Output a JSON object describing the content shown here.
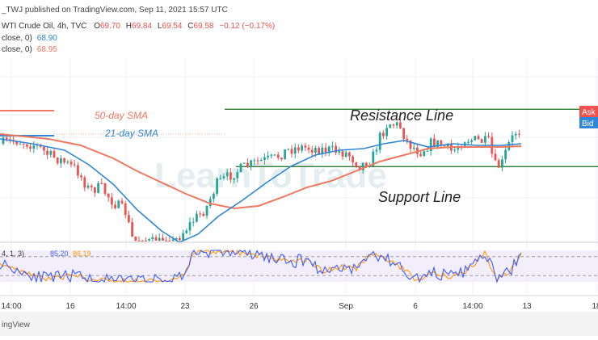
{
  "header": {
    "publisher": "_TWJ published on TradingView.com, Sep 11, 2021 15:57 UTC",
    "symbol": "WTI Crude Oil, 4h, TVC",
    "o_label": "O",
    "o_value": "69.70",
    "h_label": "H",
    "h_value": "69.84",
    "l_label": "L",
    "l_value": "69.54",
    "c_label": "C",
    "c_value": "69.58",
    "change": "−0.12 (−0.17%)",
    "sma1_label": "close, 0)",
    "sma1_value": "68.90",
    "sma2_label": "close, 0)",
    "sma2_value": "68.95"
  },
  "annotations": {
    "sma50_label": "50-day SMA",
    "sma21_label": "21-day SMA",
    "resistance_label": "Resistance Line",
    "support_label": "Support Line",
    "watermark": "LearnToTrade"
  },
  "price_tags": {
    "ask": "Ask",
    "bid": "Bid"
  },
  "oscillator": {
    "params": "4, 1, 3)",
    "k_value": "85.20",
    "d_value": "86.19"
  },
  "footer": {
    "brand": "ingView"
  },
  "colors": {
    "up": "#26a69a",
    "down": "#ef5350",
    "sma21": "#2f86d6",
    "sma50": "#f07860",
    "support_resistance": "#2e7d32",
    "ask": "#ef5350",
    "bid": "#2f86d6",
    "osc_k": "#3d5afe",
    "osc_d": "#ff9800"
  },
  "chart_data": {
    "type": "candlestick",
    "x_ticks": [
      "14:00",
      "16",
      "14:00",
      "23",
      "26",
      "Sep",
      "6",
      "14:00",
      "13",
      "18"
    ],
    "resistance": 70.0,
    "support": 67.2,
    "ylim": [
      63.5,
      72.5
    ],
    "oscillator_levels": [
      80,
      20
    ],
    "oscillator_range": [
      0,
      100
    ]
  }
}
